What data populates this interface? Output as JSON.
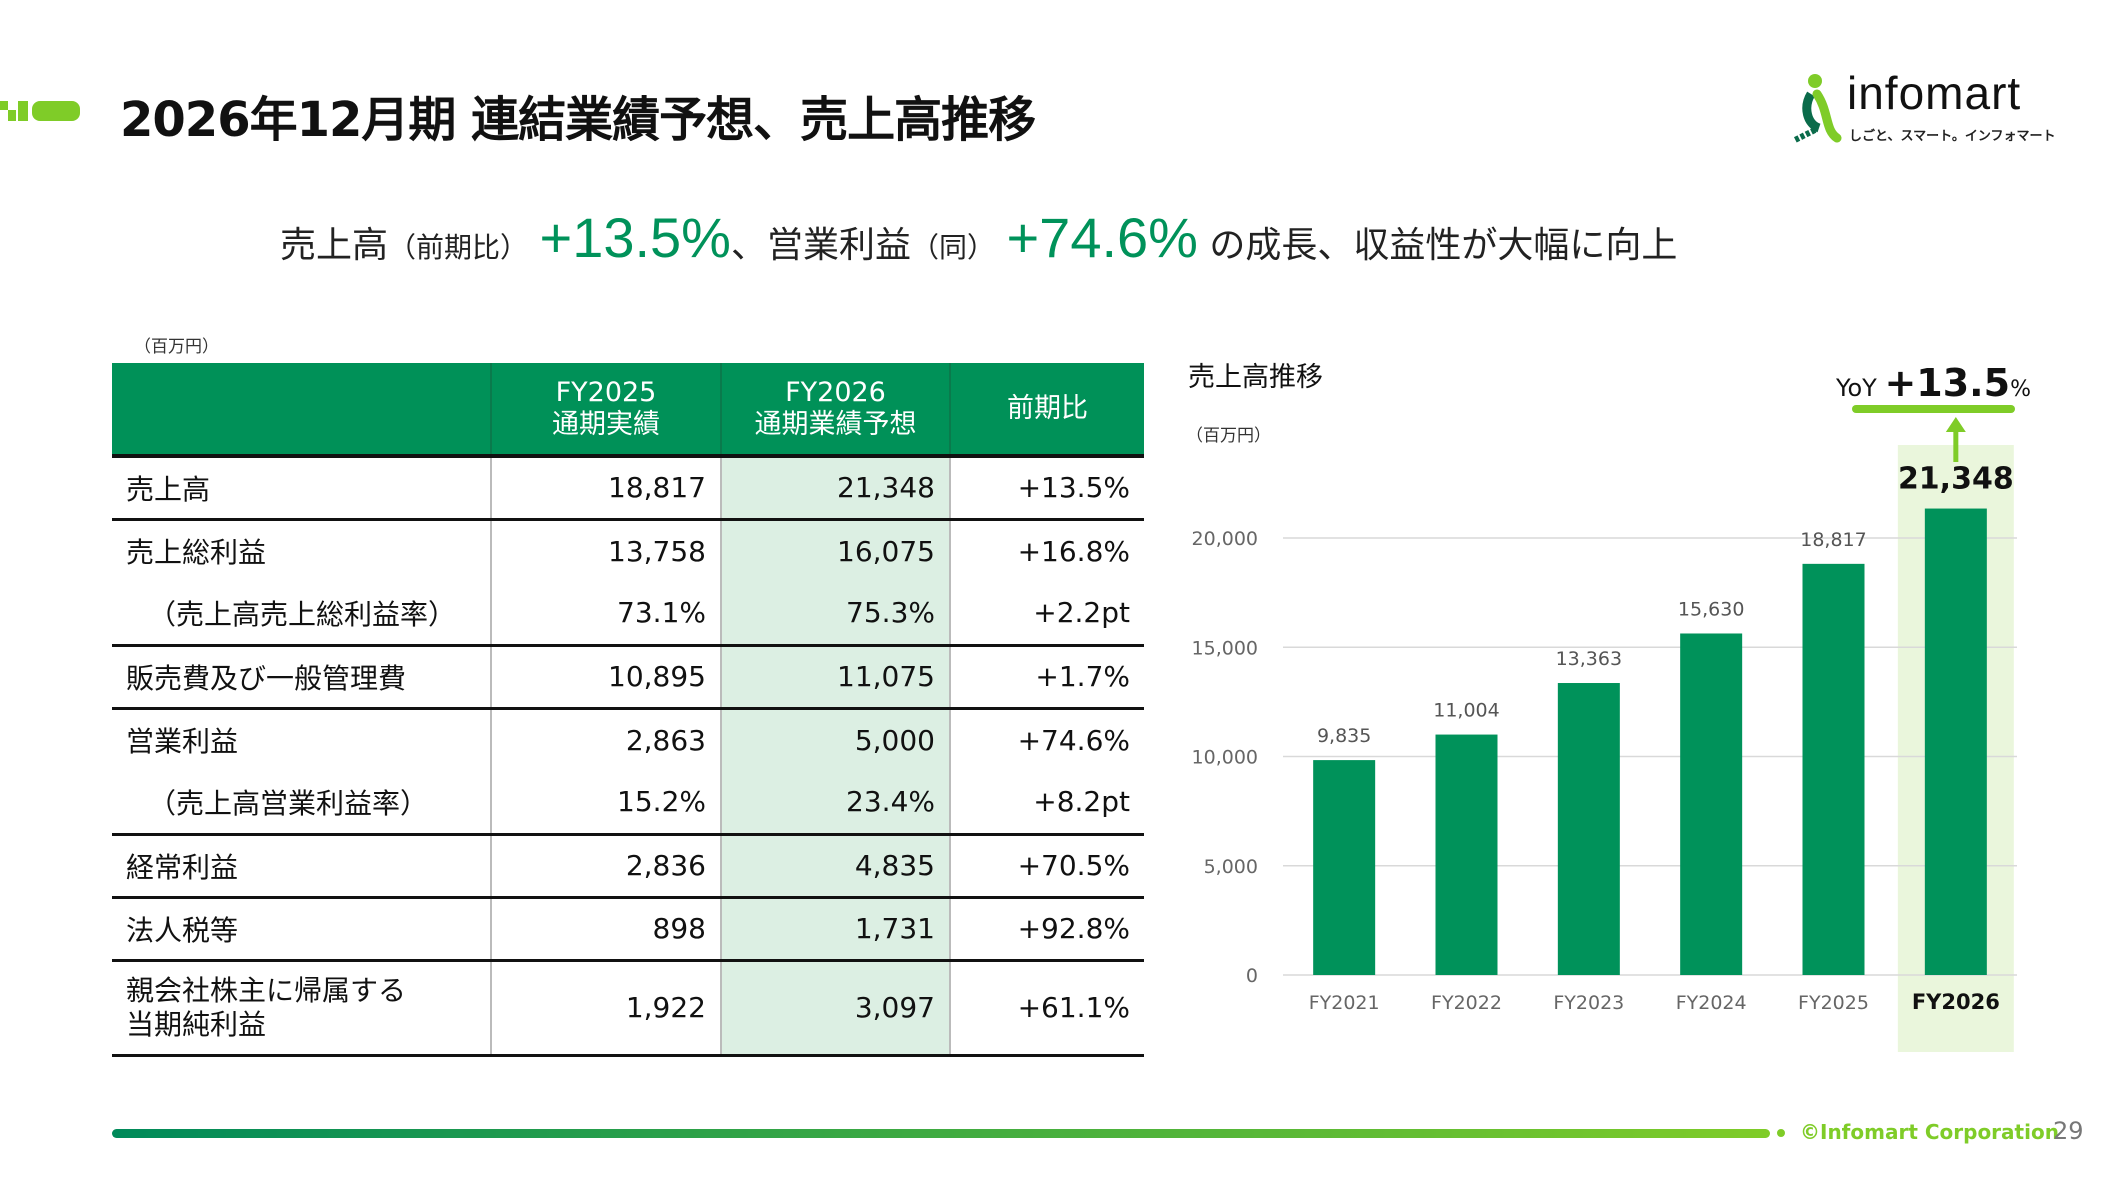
{
  "header": {
    "title": "2026年12月期 連結業績予想、売上高推移",
    "logo_text": "infomart",
    "logo_tagline": "しごと、スマート。インフォマート"
  },
  "subtitle": {
    "part1": "売上高",
    "part1_note": "（前期比）",
    "value1": "+13.5%",
    "part2": "、営業利益",
    "part2_note": "（同）",
    "value2": "+74.6%",
    "part3": "の成長、収益性が大幅に向上"
  },
  "table": {
    "unit": "（百万円）",
    "headers": [
      {
        "line1": "",
        "line2": ""
      },
      {
        "line1": "FY2025",
        "line2": "通期実績"
      },
      {
        "line1": "FY2026",
        "line2": "通期業績予想"
      },
      {
        "line1": "前期比",
        "line2": ""
      }
    ],
    "rows": [
      {
        "label": "売上高",
        "fy2025": "18,817",
        "fy2026": "21,348",
        "yoy": "+13.5%"
      },
      {
        "label": "売上総利益",
        "fy2025": "13,758",
        "fy2026": "16,075",
        "yoy": "+16.8%"
      },
      {
        "label": "（売上高売上総利益率）",
        "fy2025": "73.1%",
        "fy2026": "75.3%",
        "yoy": "+2.2pt"
      },
      {
        "label": "販売費及び一般管理費",
        "fy2025": "10,895",
        "fy2026": "11,075",
        "yoy": "+1.7%"
      },
      {
        "label": "営業利益",
        "fy2025": "2,863",
        "fy2026": "5,000",
        "yoy": "+74.6%"
      },
      {
        "label": "（売上高営業利益率）",
        "fy2025": "15.2%",
        "fy2026": "23.4%",
        "yoy": "+8.2pt"
      },
      {
        "label": "経常利益",
        "fy2025": "2,836",
        "fy2026": "4,835",
        "yoy": "+70.5%"
      },
      {
        "label": "法人税等",
        "fy2025": "898",
        "fy2026": "1,731",
        "yoy": "+92.8%"
      },
      {
        "label": "親会社株主に帰属する当期純利益",
        "label_line1": "親会社株主に帰属する",
        "label_line2": "当期純利益",
        "fy2025": "1,922",
        "fy2026": "3,097",
        "yoy": "+61.1%"
      }
    ]
  },
  "chart_data": {
    "type": "bar",
    "title": "売上高推移",
    "ylabel": "（百万円）",
    "categories": [
      "FY2021",
      "FY2022",
      "FY2023",
      "FY2024",
      "FY2025",
      "FY2026"
    ],
    "values": [
      9835,
      11004,
      13363,
      15630,
      18817,
      21348
    ],
    "data_labels": [
      "9,835",
      "11,004",
      "13,363",
      "15,630",
      "18,817",
      "21,348"
    ],
    "ylim": [
      0,
      22000
    ],
    "yticks": [
      0,
      5000,
      10000,
      15000,
      20000
    ],
    "ytick_labels": [
      "0",
      "5,000",
      "10,000",
      "15,000",
      "20,000"
    ],
    "grid": true,
    "highlight_category": "FY2026",
    "annotation": {
      "prefix": "YoY",
      "value": "+13.5",
      "suffix": "%"
    },
    "colors": {
      "bar": "#00925a",
      "highlight_bg": "#eaf6dc",
      "accent": "#7fcc28",
      "grid": "#d9d9d9"
    }
  },
  "footer": {
    "copyright": "©Infomart Corporation",
    "page": "29"
  }
}
